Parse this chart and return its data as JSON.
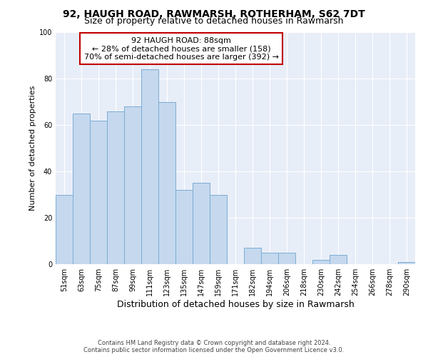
{
  "title": "92, HAUGH ROAD, RAWMARSH, ROTHERHAM, S62 7DT",
  "subtitle": "Size of property relative to detached houses in Rawmarsh",
  "xlabel": "Distribution of detached houses by size in Rawmarsh",
  "ylabel": "Number of detached properties",
  "bar_labels": [
    "51sqm",
    "63sqm",
    "75sqm",
    "87sqm",
    "99sqm",
    "111sqm",
    "123sqm",
    "135sqm",
    "147sqm",
    "159sqm",
    "171sqm",
    "182sqm",
    "194sqm",
    "206sqm",
    "218sqm",
    "230sqm",
    "242sqm",
    "254sqm",
    "266sqm",
    "278sqm",
    "290sqm"
  ],
  "bar_values": [
    30,
    65,
    62,
    66,
    68,
    84,
    70,
    32,
    35,
    30,
    0,
    7,
    5,
    5,
    0,
    2,
    4,
    0,
    0,
    0,
    1
  ],
  "bar_color": "#c5d8ee",
  "bar_edge_color": "#7badd4",
  "annotation_title": "92 HAUGH ROAD: 88sqm",
  "annotation_line1": "← 28% of detached houses are smaller (158)",
  "annotation_line2": "70% of semi-detached houses are larger (392) →",
  "annotation_box_facecolor": "#ffffff",
  "annotation_box_edgecolor": "#c00000",
  "ylim": [
    0,
    100
  ],
  "yticks": [
    0,
    20,
    40,
    60,
    80,
    100
  ],
  "background_color": "#e8eef8",
  "grid_color": "#ffffff",
  "footer_line1": "Contains HM Land Registry data © Crown copyright and database right 2024.",
  "footer_line2": "Contains public sector information licensed under the Open Government Licence v3.0.",
  "title_fontsize": 10,
  "subtitle_fontsize": 9,
  "xlabel_fontsize": 9,
  "ylabel_fontsize": 8,
  "tick_fontsize": 7,
  "annotation_fontsize": 8,
  "footer_fontsize": 6
}
